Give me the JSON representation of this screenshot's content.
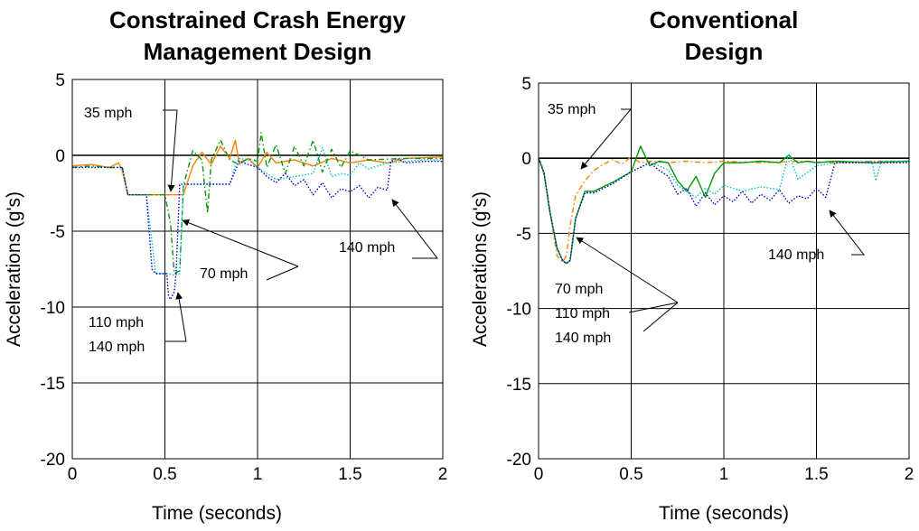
{
  "colors": {
    "35 mph": "#ff8000",
    "70 mph": "#009900",
    "110 mph": "#00c0c0",
    "140 mph": "#0000d0"
  },
  "chart_data": [
    {
      "type": "line",
      "title": "Constrained Crash Energy Management Design",
      "title_lines": [
        "Constrained Crash Energy",
        "Management Design"
      ],
      "xlabel": "Time (seconds)",
      "ylabel": "Accelerations (g's)",
      "xlim": [
        0,
        2
      ],
      "ylim": [
        -20,
        5
      ],
      "xticks": [
        0,
        0.5,
        1,
        1.5,
        2
      ],
      "xtick_labels": [
        "0",
        "0.5",
        "1",
        "1.5",
        "2"
      ],
      "yticks": [
        5,
        0,
        -5,
        -10,
        -15,
        -20
      ],
      "ytick_labels": [
        "5",
        "0",
        "-5",
        "-10",
        "-15",
        "-20"
      ],
      "grid": true,
      "legend": "none",
      "series": [
        {
          "name": "35 mph",
          "style": "solid",
          "x": [
            0,
            0.1,
            0.2,
            0.25,
            0.27,
            0.3,
            0.4,
            0.5,
            0.55,
            0.6,
            0.65,
            0.7,
            0.75,
            0.8,
            0.85,
            0.88,
            0.9,
            0.95,
            1.0,
            1.05,
            1.1,
            1.2,
            1.3,
            1.4,
            1.5,
            1.6,
            1.7,
            1.8,
            2.0
          ],
          "y": [
            -0.7,
            -0.6,
            -0.8,
            -0.5,
            -1.0,
            -2.6,
            -2.6,
            -2.6,
            -2.6,
            -2.6,
            -0.7,
            0.2,
            -0.6,
            0.6,
            -0.2,
            1.0,
            -0.5,
            -0.2,
            -0.8,
            0.2,
            -0.5,
            -0.3,
            -0.7,
            -0.2,
            -0.5,
            -0.3,
            -0.5,
            -0.2,
            -0.1
          ]
        },
        {
          "name": "70 mph",
          "style": "dashdot",
          "x": [
            0,
            0.1,
            0.2,
            0.27,
            0.3,
            0.4,
            0.45,
            0.5,
            0.53,
            0.55,
            0.58,
            0.6,
            0.65,
            0.7,
            0.73,
            0.75,
            0.8,
            0.85,
            0.9,
            0.95,
            1.0,
            1.02,
            1.05,
            1.1,
            1.15,
            1.2,
            1.25,
            1.3,
            1.35,
            1.4,
            1.45,
            1.5,
            1.6,
            1.8,
            2.0
          ],
          "y": [
            -0.8,
            -0.7,
            -0.8,
            -0.8,
            -2.6,
            -2.6,
            -2.6,
            -2.6,
            -4.5,
            -7.8,
            -7.6,
            -2.0,
            0.3,
            -0.3,
            -3.8,
            -0.3,
            1.0,
            -0.3,
            -0.6,
            -0.2,
            -0.4,
            1.5,
            -0.8,
            0.7,
            -1.2,
            0.6,
            -0.7,
            1.0,
            -1.1,
            0.4,
            -0.8,
            0.3,
            -0.3,
            -0.2,
            -0.2
          ]
        },
        {
          "name": "110 mph",
          "style": "dotted",
          "x": [
            0,
            0.1,
            0.2,
            0.27,
            0.3,
            0.38,
            0.4,
            0.45,
            0.5,
            0.52,
            0.55,
            0.58,
            0.6,
            0.65,
            0.7,
            0.75,
            0.8,
            0.85,
            0.88,
            0.9,
            0.95,
            1.0,
            1.1,
            1.2,
            1.3,
            1.35,
            1.4,
            1.45,
            1.5,
            1.55,
            1.6,
            1.7,
            1.8,
            1.9,
            2.0
          ],
          "y": [
            -0.8,
            -0.8,
            -0.8,
            -0.8,
            -2.6,
            -2.6,
            -2.6,
            -7.8,
            -7.8,
            -7.8,
            -7.9,
            -7.8,
            -1.9,
            -1.9,
            -1.9,
            -1.9,
            -1.9,
            -1.9,
            -0.7,
            -0.2,
            -0.3,
            -0.8,
            -1.6,
            -1.4,
            -1.2,
            0.5,
            -1.4,
            -1.2,
            -1.3,
            -0.5,
            -0.9,
            -0.5,
            -0.4,
            -0.3,
            -0.3
          ]
        },
        {
          "name": "140 mph",
          "style": "dotted",
          "x": [
            0,
            0.1,
            0.2,
            0.27,
            0.3,
            0.4,
            0.43,
            0.45,
            0.5,
            0.51,
            0.52,
            0.53,
            0.55,
            0.56,
            0.58,
            0.6,
            0.65,
            0.7,
            0.75,
            0.8,
            0.85,
            0.9,
            0.95,
            1.0,
            1.05,
            1.1,
            1.15,
            1.2,
            1.25,
            1.3,
            1.35,
            1.4,
            1.45,
            1.5,
            1.55,
            1.6,
            1.65,
            1.7,
            1.72,
            1.75,
            1.8,
            1.9,
            2.0
          ],
          "y": [
            -0.8,
            -0.8,
            -0.8,
            -0.8,
            -2.6,
            -2.6,
            -7.5,
            -7.8,
            -7.8,
            -7.8,
            -9.3,
            -9.5,
            -9.0,
            -7.8,
            -1.9,
            -1.9,
            -1.9,
            -1.9,
            -1.9,
            -1.9,
            -1.9,
            -0.4,
            -0.6,
            -0.8,
            -1.4,
            -1.8,
            -1.2,
            -2.0,
            -1.6,
            -2.6,
            -1.8,
            -2.8,
            -2.2,
            -2.4,
            -2.0,
            -2.8,
            -2.1,
            -2.3,
            -0.4,
            -0.2,
            -0.5,
            -0.4,
            -0.4
          ]
        }
      ],
      "annotations": [
        {
          "text": "35 mph"
        },
        {
          "text": "70 mph"
        },
        {
          "text": "110 mph"
        },
        {
          "text": "140 mph"
        },
        {
          "text": "140 mph"
        }
      ]
    },
    {
      "type": "line",
      "title": "Conventional Design",
      "title_lines": [
        "Conventional",
        "Design"
      ],
      "xlabel": "Time (seconds)",
      "ylabel": "Accelerations (g's)",
      "xlim": [
        0,
        2
      ],
      "ylim": [
        -20,
        5
      ],
      "xticks": [
        0,
        0.5,
        1,
        1.5,
        2
      ],
      "xtick_labels": [
        "0",
        "0.5",
        "1",
        "1.5",
        "2"
      ],
      "yticks": [
        5,
        0,
        -5,
        -10,
        -15,
        -20
      ],
      "ytick_labels": [
        "5",
        "0",
        "-5",
        "-10",
        "-15",
        "-20"
      ],
      "grid": true,
      "legend": "none",
      "series": [
        {
          "name": "35 mph",
          "style": "dashdot",
          "x": [
            0,
            0.02,
            0.05,
            0.08,
            0.1,
            0.13,
            0.15,
            0.17,
            0.2,
            0.25,
            0.3,
            0.35,
            0.4,
            0.45,
            0.5,
            0.55,
            0.6,
            0.7,
            0.8,
            0.9,
            1.0,
            1.2,
            1.4,
            1.6,
            1.8,
            2.0
          ],
          "y": [
            0,
            -0.5,
            -2.5,
            -5.0,
            -6.5,
            -6.9,
            -6.5,
            -4.5,
            -2.5,
            -1.5,
            -0.8,
            -0.4,
            -0.1,
            -0.4,
            0.1,
            -0.3,
            -0.2,
            -0.3,
            -0.2,
            -0.3,
            -0.2,
            -0.3,
            -0.2,
            -0.3,
            -0.2,
            -0.2
          ]
        },
        {
          "name": "70 mph",
          "style": "solid",
          "x": [
            0,
            0.03,
            0.06,
            0.1,
            0.13,
            0.15,
            0.17,
            0.2,
            0.25,
            0.3,
            0.4,
            0.5,
            0.55,
            0.6,
            0.65,
            0.7,
            0.75,
            0.8,
            0.85,
            0.9,
            0.95,
            1.0,
            1.1,
            1.2,
            1.3,
            1.35,
            1.4,
            1.45,
            1.5,
            1.6,
            1.8,
            2.0
          ],
          "y": [
            0,
            -1.0,
            -3.5,
            -6.0,
            -6.8,
            -7.0,
            -6.8,
            -4.0,
            -2.2,
            -2.2,
            -1.6,
            -0.9,
            0.8,
            -0.5,
            -0.2,
            -0.3,
            -1.5,
            -2.2,
            -1.2,
            -2.6,
            -1.0,
            -0.3,
            -0.3,
            -0.2,
            -0.3,
            0.2,
            -0.3,
            -0.2,
            -0.3,
            -0.2,
            -0.3,
            -0.2
          ]
        },
        {
          "name": "110 mph",
          "style": "dotted",
          "x": [
            0,
            0.03,
            0.06,
            0.1,
            0.13,
            0.15,
            0.17,
            0.2,
            0.25,
            0.3,
            0.4,
            0.5,
            0.6,
            0.65,
            0.7,
            0.75,
            0.8,
            0.85,
            0.9,
            0.95,
            1.0,
            1.1,
            1.2,
            1.3,
            1.35,
            1.4,
            1.5,
            1.6,
            1.7,
            1.8,
            1.82,
            1.85,
            2.0
          ],
          "y": [
            0,
            -1.0,
            -3.5,
            -6.0,
            -6.8,
            -7.0,
            -6.8,
            -4.0,
            -2.3,
            -2.3,
            -1.7,
            -0.9,
            -0.3,
            -0.5,
            -0.8,
            -1.8,
            -2.2,
            -2.6,
            -2.0,
            -2.4,
            -1.8,
            -2.2,
            -1.9,
            -2.1,
            0.3,
            -1.4,
            -0.5,
            -0.3,
            -0.3,
            -0.2,
            -1.5,
            -0.2,
            -0.2
          ]
        },
        {
          "name": "140 mph",
          "style": "dotted",
          "x": [
            0,
            0.03,
            0.06,
            0.1,
            0.13,
            0.15,
            0.17,
            0.2,
            0.25,
            0.3,
            0.4,
            0.5,
            0.6,
            0.65,
            0.7,
            0.75,
            0.8,
            0.85,
            0.9,
            0.95,
            1.0,
            1.05,
            1.1,
            1.15,
            1.2,
            1.25,
            1.3,
            1.35,
            1.4,
            1.45,
            1.5,
            1.55,
            1.6,
            1.7,
            1.8,
            2.0
          ],
          "y": [
            0,
            -1.0,
            -3.5,
            -6.0,
            -6.8,
            -7.0,
            -6.8,
            -4.0,
            -2.3,
            -2.3,
            -1.7,
            -0.9,
            -0.3,
            -0.8,
            -1.2,
            -2.4,
            -2.0,
            -3.2,
            -2.3,
            -3.1,
            -2.5,
            -2.9,
            -2.2,
            -3.0,
            -2.4,
            -2.8,
            -2.1,
            -3.0,
            -2.5,
            -2.7,
            -2.0,
            -2.6,
            -0.3,
            -0.3,
            -0.3,
            -0.3
          ]
        }
      ],
      "annotations": [
        {
          "text": "35 mph"
        },
        {
          "text": "70 mph"
        },
        {
          "text": "110 mph"
        },
        {
          "text": "140 mph"
        },
        {
          "text": "140 mph"
        }
      ]
    }
  ]
}
